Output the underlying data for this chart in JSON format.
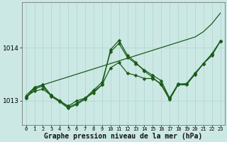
{
  "background_color": "#cce8e4",
  "grid_color": "#aad4ce",
  "line_color": "#1a5c1a",
  "marker_color": "#1a5c1a",
  "xlabel": "Graphe pression niveau de la mer (hPa)",
  "xlabel_fontsize": 7,
  "yticks": [
    1013,
    1014
  ],
  "xlim": [
    -0.5,
    23.5
  ],
  "ylim": [
    1012.55,
    1014.85
  ],
  "series": [
    {
      "y": [
        1013.1,
        1013.25,
        1013.3,
        1013.35,
        1013.4,
        1013.45,
        1013.5,
        1013.55,
        1013.6,
        1013.65,
        1013.7,
        1013.75,
        1013.8,
        1013.85,
        1013.9,
        1013.95,
        1014.0,
        1014.05,
        1014.1,
        1014.15,
        1014.2,
        1014.3,
        1014.45,
        1014.65
      ],
      "marker": false
    },
    {
      "y": [
        1013.05,
        1013.25,
        1013.3,
        1013.1,
        1013.0,
        1012.88,
        1012.95,
        1013.05,
        1013.2,
        1013.35,
        1013.92,
        1014.08,
        1013.82,
        1013.7,
        1013.58,
        1013.48,
        1013.38,
        1013.05,
        1013.32,
        1013.32,
        1013.52,
        1013.7,
        1013.88,
        1014.12
      ],
      "marker": true
    },
    {
      "y": [
        1013.05,
        1013.22,
        1013.28,
        1013.08,
        1012.98,
        1012.86,
        1012.93,
        1013.03,
        1013.18,
        1013.3,
        1013.96,
        1014.14,
        1013.86,
        1013.72,
        1013.56,
        1013.44,
        1013.3,
        1013.02,
        1013.3,
        1013.3,
        1013.5,
        1013.7,
        1013.88,
        1014.12
      ],
      "marker": true
    },
    {
      "y": [
        1013.08,
        1013.18,
        1013.22,
        1013.1,
        1013.0,
        1012.9,
        1013.0,
        1013.05,
        1013.15,
        1013.3,
        1013.62,
        1013.72,
        1013.52,
        1013.48,
        1013.42,
        1013.42,
        1013.32,
        1013.05,
        1013.3,
        1013.32,
        1013.5,
        1013.7,
        1013.85,
        1014.12
      ],
      "marker": true
    }
  ],
  "marker_size": 2.5,
  "linewidth": 0.9
}
